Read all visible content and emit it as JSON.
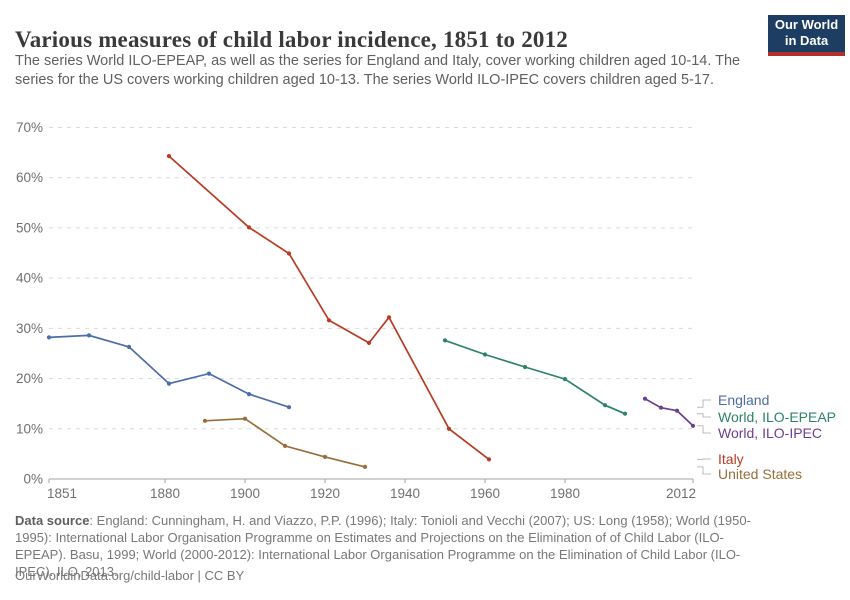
{
  "header": {
    "title": "Various measures of child labor incidence, 1851 to 2012",
    "subtitle": "The series World ILO-EPEAP, as well as the series for England and Italy, cover working children aged 10-14. The series for the US covers working children aged 10-13. The series World ILO-IPEC covers children aged 5-17.",
    "logo_line1": "Our World",
    "logo_line2": "in Data",
    "logo_bg_color": "#1d3d63",
    "logo_bar_color": "#b2312c"
  },
  "chart_data": {
    "type": "line",
    "title": "Various measures of child labor incidence, 1851 to 2012",
    "xlabel": "",
    "ylabel": "",
    "xlim": [
      1851,
      2012
    ],
    "ylim": [
      0,
      70
    ],
    "grid": "horizontal-dashed",
    "legend_position": "right",
    "x_ticks": [
      1851,
      1880,
      1900,
      1920,
      1940,
      1960,
      1980,
      2012
    ],
    "y_ticks": [
      0,
      10,
      20,
      30,
      40,
      50,
      60,
      70
    ],
    "y_tick_labels": [
      "0%",
      "10%",
      "20%",
      "30%",
      "40%",
      "50%",
      "60%",
      "70%"
    ],
    "series": [
      {
        "name": "England",
        "color": "#4c6da9",
        "points": [
          [
            1851,
            28.2
          ],
          [
            1861,
            28.6
          ],
          [
            1871,
            26.3
          ],
          [
            1881,
            19.0
          ],
          [
            1891,
            21.0
          ],
          [
            1901,
            16.9
          ],
          [
            1911,
            14.3
          ]
        ]
      },
      {
        "name": "World, ILO-EPEAP",
        "color": "#2c8465",
        "points": [
          [
            1950,
            27.6
          ],
          [
            1960,
            24.8
          ],
          [
            1970,
            22.3
          ],
          [
            1980,
            19.9
          ],
          [
            1990,
            14.7
          ],
          [
            1995,
            13.0
          ]
        ]
      },
      {
        "name": "World, ILO-IPEC",
        "color": "#6d3e91",
        "points": [
          [
            2000,
            16.0
          ],
          [
            2004,
            14.2
          ],
          [
            2008,
            13.6
          ],
          [
            2012,
            10.6
          ]
        ]
      },
      {
        "name": "Italy",
        "color": "#b93b23",
        "points": [
          [
            1881,
            64.3
          ],
          [
            1901,
            50.1
          ],
          [
            1911,
            44.9
          ],
          [
            1921,
            31.6
          ],
          [
            1931,
            27.1
          ],
          [
            1936,
            32.2
          ],
          [
            1951,
            10.0
          ],
          [
            1961,
            3.9
          ]
        ]
      },
      {
        "name": "United States",
        "color": "#996d39",
        "points": [
          [
            1890,
            11.6
          ],
          [
            1900,
            12.0
          ],
          [
            1910,
            6.6
          ],
          [
            1920,
            4.4
          ],
          [
            1930,
            2.4
          ]
        ]
      }
    ]
  },
  "legend": {
    "items": [
      {
        "label": "England",
        "color": "#4c6da9"
      },
      {
        "label": "World, ILO-EPEAP",
        "color": "#2c8465"
      },
      {
        "label": "World, ILO-IPEC",
        "color": "#6d3e91"
      },
      {
        "label": "Italy",
        "color": "#b93b23"
      },
      {
        "label": "United States",
        "color": "#996d39"
      }
    ]
  },
  "footer": {
    "datasource_label": "Data source",
    "datasource_text": ": England: Cunningham, H. and Viazzo, P.P. (1996); Italy: Tonioli and Vecchi (2007); US: Long (1958); World (1950-1995): International Labor Organisation Programme on Estimates and Projections on the Elimination of of Child Labor (ILO-EPEAP). Basu, 1999; World (2000-2012): International Labor Organisation Programme on the Elimination of Child Labor (ILO-IPEC). ILO, 2013.",
    "license_text": "OurWorldinData.org/child-labor | CC BY"
  }
}
